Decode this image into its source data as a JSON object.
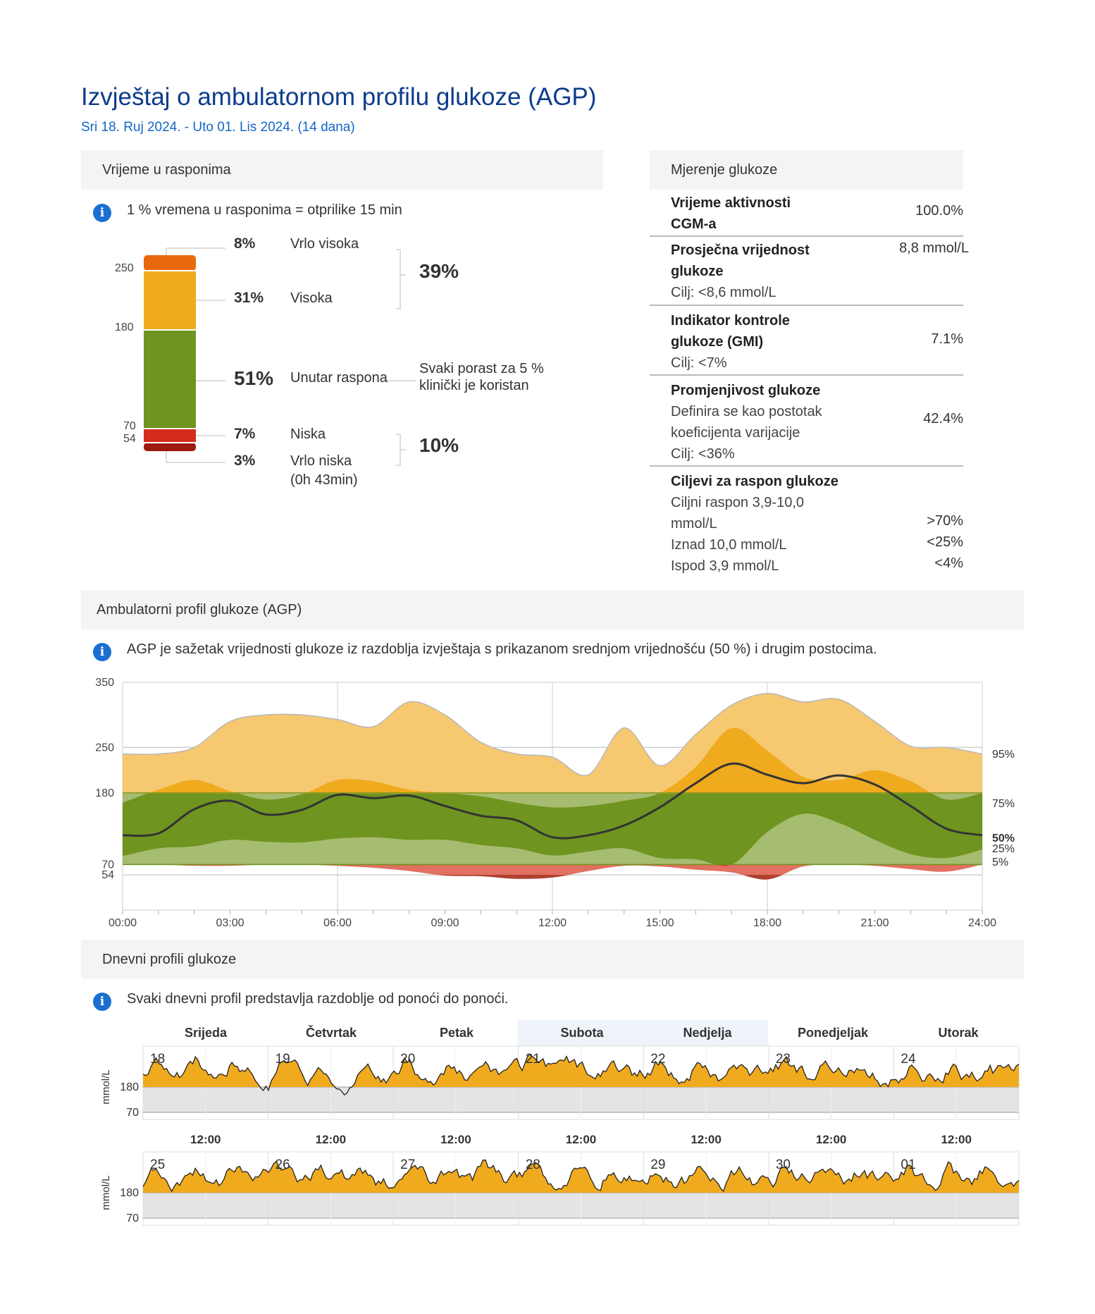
{
  "header": {
    "title": "Izvještaj o ambulatornom profilu glukoze (AGP)",
    "subtitle": "Sri 18. Ruj 2024. - Uto 01. Lis 2024. (14 dana)"
  },
  "time_in_ranges": {
    "heading": "Vrijeme u rasponima",
    "info": "1 % vremena u rasponima = otprilike 15 min",
    "ticks": [
      "250",
      "180",
      "70",
      "54"
    ],
    "rows": [
      {
        "pct": "8%",
        "label": "Vrlo visoka"
      },
      {
        "pct": "31%",
        "label": "Visoka"
      },
      {
        "pct": "51%",
        "label": "Unutar raspona"
      },
      {
        "pct": "7%",
        "label": "Niska"
      },
      {
        "pct": "3%",
        "label": "Vrlo niska",
        "sub": "(0h 43min)"
      }
    ],
    "high_total": "39%",
    "low_total": "10%",
    "note_line1": "Svaki porast za 5 %",
    "note_line2": "klinički je koristan",
    "colors": {
      "very_high": "#e8690c",
      "high": "#f0aa1e",
      "in_range": "#6f9420",
      "low": "#d42b1e",
      "very_low": "#9c1a10"
    }
  },
  "glucose_metrics": {
    "heading": "Mjerenje glukoze",
    "cgm_name1": "Vrijeme aktivnosti",
    "cgm_name2": "CGM-a",
    "cgm_value": "100.0%",
    "mean_name1": "Prosječna vrijednost",
    "mean_name2": "glukoze",
    "mean_target": "Cilj: <8,6 mmol/L",
    "mean_value": "8,8 mmol/L",
    "gmi_name1": "Indikator kontrole",
    "gmi_name2": "glukoze (GMI)",
    "gmi_target": "Cilj: <7%",
    "gmi_value": "7.1%",
    "cv_name": "Promjenjivost glukoze",
    "cv_desc1": "Definira se kao postotak",
    "cv_desc2": "koeficijenta varijacije",
    "cv_target": "Cilj: <36%",
    "cv_value": "42.4%",
    "goals_name": "Ciljevi za raspon glukoze",
    "goal1_a": "Ciljni raspon 3,9-10,0",
    "goal1_b": "mmol/L",
    "goal1_value": ">70%",
    "goal2": "Iznad 10,0 mmol/L",
    "goal2_value": "<25%",
    "goal3": "Ispod 3,9 mmol/L",
    "goal3_value": "<4%"
  },
  "agp": {
    "heading": "Ambulatorni profil glukoze (AGP)",
    "info": "AGP je sažetak vrijednosti glukoze iz razdoblja izvještaja s prikazanom srednjom vrijednošću (50 %) i drugim postocima."
  },
  "daily": {
    "heading": "Dnevni profili glukoze",
    "info": "Svaki dnevni profil predstavlja razdoblje od ponoći do ponoći.",
    "weekdays": [
      "Srijeda",
      "Četvrtak",
      "Petak",
      "Subota",
      "Nedjelja",
      "Ponedjeljak",
      "Utorak"
    ],
    "week1_dates": [
      "18",
      "19",
      "20",
      "21",
      "22",
      "23",
      "24"
    ],
    "week2_dates": [
      "25",
      "26",
      "27",
      "28",
      "29",
      "30",
      "01"
    ],
    "noon_label": "12:00",
    "ylabel": "mmol/L",
    "y_ticks": [
      "180",
      "70"
    ]
  },
  "chart_data": {
    "type": "area",
    "title": "Ambulatorni profil glukoze (AGP)",
    "y_ticks": [
      350,
      250,
      180,
      70,
      54
    ],
    "ylim": [
      0,
      350
    ],
    "x_ticks": [
      "00:00",
      "03:00",
      "06:00",
      "09:00",
      "12:00",
      "15:00",
      "18:00",
      "21:00",
      "24:00"
    ],
    "target_range": [
      70,
      180
    ],
    "hours": [
      0,
      1,
      2,
      3,
      4,
      5,
      6,
      7,
      8,
      9,
      10,
      11,
      12,
      13,
      14,
      15,
      16,
      17,
      18,
      19,
      20,
      21,
      22,
      23,
      24
    ],
    "series": [
      {
        "name": "95%",
        "values": [
          240,
          240,
          250,
          290,
          300,
          300,
          293,
          282,
          320,
          300,
          258,
          240,
          235,
          208,
          280,
          222,
          270,
          315,
          333,
          320,
          324,
          290,
          252,
          250,
          240
        ]
      },
      {
        "name": "75%",
        "values": [
          165,
          185,
          200,
          183,
          170,
          178,
          200,
          198,
          185,
          180,
          175,
          165,
          158,
          160,
          168,
          180,
          220,
          280,
          245,
          205,
          200,
          215,
          198,
          170,
          180
        ]
      },
      {
        "name": "50%",
        "values": [
          115,
          118,
          155,
          168,
          147,
          154,
          177,
          172,
          176,
          160,
          145,
          138,
          112,
          115,
          130,
          158,
          195,
          225,
          208,
          195,
          207,
          193,
          160,
          125,
          115
        ]
      },
      {
        "name": "25%",
        "values": [
          83,
          95,
          98,
          108,
          105,
          104,
          110,
          112,
          108,
          108,
          100,
          95,
          84,
          90,
          95,
          80,
          78,
          70,
          120,
          148,
          134,
          108,
          86,
          80,
          93
        ]
      },
      {
        "name": "5%",
        "values": [
          70,
          70,
          68,
          68,
          70,
          70,
          68,
          65,
          60,
          53,
          52,
          48,
          50,
          60,
          68,
          67,
          62,
          58,
          47,
          67,
          70,
          68,
          63,
          59,
          70
        ]
      }
    ],
    "percentile_labels": [
      "95%",
      "75%",
      "50%",
      "25%",
      "5%"
    ]
  }
}
